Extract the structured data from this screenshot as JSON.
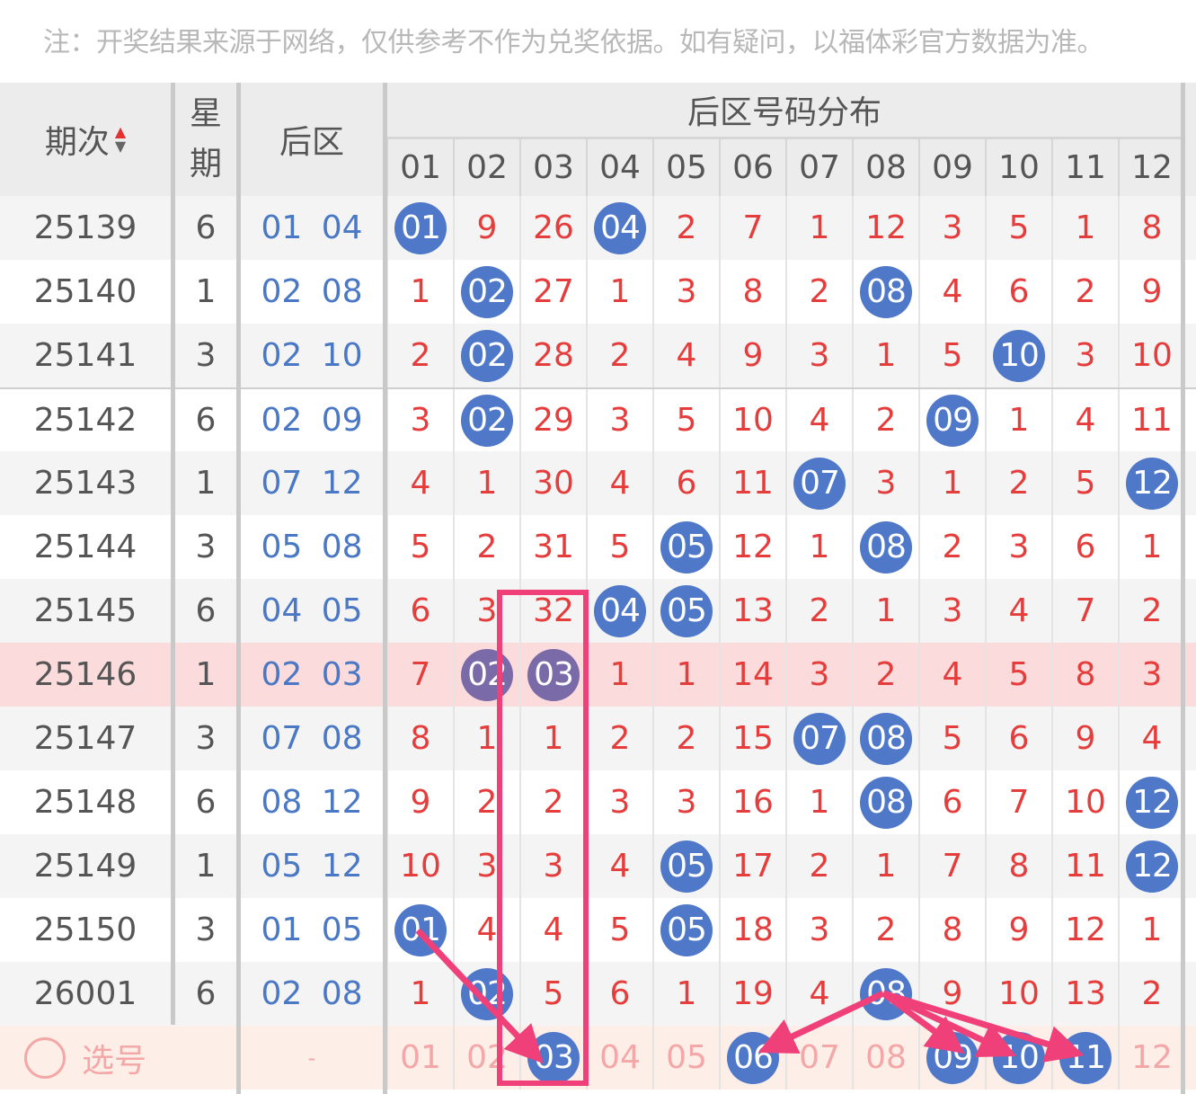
{
  "notice": "注：开奖结果来源于网络，仅供参考不作为兑奖依据。如有疑问，以福体彩官方数据为准。",
  "header": {
    "period": "期次",
    "sort_icon": "sort-up-down-icon",
    "week_line1": "星",
    "week_line2": "期",
    "back": "后区",
    "distribution": "后区号码分布",
    "numbers": [
      "01",
      "02",
      "03",
      "04",
      "05",
      "06",
      "07",
      "08",
      "09",
      "10",
      "11",
      "12"
    ]
  },
  "colors": {
    "ball": "#4f78c8",
    "miss": "#e53c3c",
    "back": "#4a78c4",
    "highlight": "#f7bebe",
    "annotation": "#f0407a"
  },
  "rows": [
    {
      "period": "25139",
      "week": "6",
      "back": "01  04",
      "cells": [
        "01",
        "9",
        "26",
        "04",
        "2",
        "7",
        "1",
        "12",
        "3",
        "5",
        "1",
        "8"
      ],
      "hits": [
        0,
        3
      ]
    },
    {
      "period": "25140",
      "week": "1",
      "back": "02  08",
      "cells": [
        "1",
        "02",
        "27",
        "1",
        "3",
        "8",
        "2",
        "08",
        "4",
        "6",
        "2",
        "9"
      ],
      "hits": [
        1,
        7
      ]
    },
    {
      "period": "25141",
      "week": "3",
      "back": "02  10",
      "cells": [
        "2",
        "02",
        "28",
        "2",
        "4",
        "9",
        "3",
        "1",
        "5",
        "10",
        "3",
        "10"
      ],
      "hits": [
        1,
        9
      ]
    },
    {
      "period": "25142",
      "week": "6",
      "back": "02  09",
      "cells": [
        "3",
        "02",
        "29",
        "3",
        "5",
        "10",
        "4",
        "2",
        "09",
        "1",
        "4",
        "11"
      ],
      "hits": [
        1,
        8
      ]
    },
    {
      "period": "25143",
      "week": "1",
      "back": "07  12",
      "cells": [
        "4",
        "1",
        "30",
        "4",
        "6",
        "11",
        "07",
        "3",
        "1",
        "2",
        "5",
        "12"
      ],
      "hits": [
        6,
        11
      ]
    },
    {
      "period": "25144",
      "week": "3",
      "back": "05  08",
      "cells": [
        "5",
        "2",
        "31",
        "5",
        "05",
        "12",
        "1",
        "08",
        "2",
        "3",
        "6",
        "1"
      ],
      "hits": [
        4,
        7
      ]
    },
    {
      "period": "25145",
      "week": "6",
      "back": "04  05",
      "cells": [
        "6",
        "3",
        "32",
        "04",
        "05",
        "13",
        "2",
        "1",
        "3",
        "4",
        "7",
        "2"
      ],
      "hits": [
        3,
        4
      ]
    },
    {
      "period": "25146",
      "week": "1",
      "back": "02  03",
      "cells": [
        "7",
        "02",
        "03",
        "1",
        "1",
        "14",
        "3",
        "2",
        "4",
        "5",
        "8",
        "3"
      ],
      "hits": [
        1,
        2
      ],
      "highlighted": true
    },
    {
      "period": "25147",
      "week": "3",
      "back": "07  08",
      "cells": [
        "8",
        "1",
        "1",
        "2",
        "2",
        "15",
        "07",
        "08",
        "5",
        "6",
        "9",
        "4"
      ],
      "hits": [
        6,
        7
      ]
    },
    {
      "period": "25148",
      "week": "6",
      "back": "08  12",
      "cells": [
        "9",
        "2",
        "2",
        "3",
        "3",
        "16",
        "1",
        "08",
        "6",
        "7",
        "10",
        "12"
      ],
      "hits": [
        7,
        11
      ]
    },
    {
      "period": "25149",
      "week": "1",
      "back": "05  12",
      "cells": [
        "10",
        "3",
        "3",
        "4",
        "05",
        "17",
        "2",
        "1",
        "7",
        "8",
        "11",
        "12"
      ],
      "hits": [
        4,
        11
      ]
    },
    {
      "period": "25150",
      "week": "3",
      "back": "01  05",
      "cells": [
        "01",
        "4",
        "4",
        "5",
        "05",
        "18",
        "3",
        "2",
        "8",
        "9",
        "12",
        "1"
      ],
      "hits": [
        0,
        4
      ]
    },
    {
      "period": "26001",
      "week": "6",
      "back": "02  08",
      "cells": [
        "1",
        "02",
        "5",
        "6",
        "1",
        "19",
        "4",
        "08",
        "9",
        "10",
        "13",
        "2"
      ],
      "hits": [
        1,
        7
      ]
    }
  ],
  "select_row": {
    "label": "选号",
    "back": "-",
    "numbers": [
      "01",
      "02",
      "03",
      "04",
      "05",
      "06",
      "07",
      "08",
      "09",
      "10",
      "11",
      "12"
    ],
    "selected": [
      2,
      5,
      8,
      9,
      10
    ]
  }
}
